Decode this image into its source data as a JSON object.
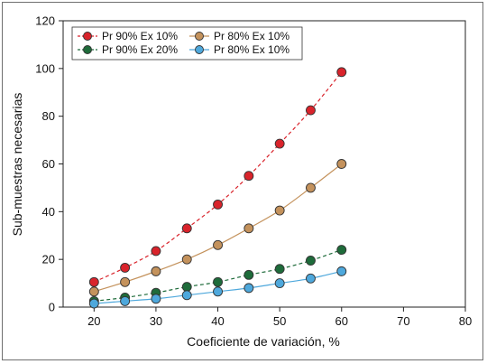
{
  "chart_data": {
    "type": "scatter",
    "title": "",
    "xlabel": "Coeficiente de variación, %",
    "ylabel": "Sub-muestras necesarias",
    "xlim": [
      15,
      80
    ],
    "ylim": [
      0,
      120
    ],
    "xticks": [
      "20",
      "30",
      "40",
      "50",
      "60",
      "70",
      "80"
    ],
    "yticks": [
      "0",
      "20",
      "40",
      "60",
      "80",
      "100",
      "120"
    ],
    "grid": false,
    "legend_position": "top-left",
    "x": [
      20,
      25,
      30,
      35,
      40,
      45,
      50,
      55,
      60
    ],
    "series": [
      {
        "name": "Pr 90% Ex 10%",
        "color": "#d9232b",
        "line": "dashed",
        "values": [
          10.5,
          16.5,
          23.5,
          33,
          43,
          55,
          68.5,
          82.5,
          98.5
        ]
      },
      {
        "name": "Pr 80% Ex 10%",
        "color": "#c4925c",
        "line": "solid",
        "values": [
          6.5,
          10.5,
          15,
          20,
          26,
          33,
          40.5,
          50,
          60
        ]
      },
      {
        "name": "Pr 90% Ex 20%",
        "color": "#1e6b3a",
        "line": "dashed",
        "values": [
          2.5,
          4,
          6,
          8.5,
          10.5,
          13.5,
          16,
          19.5,
          24
        ]
      },
      {
        "name": "Pr 80% Ex 10%",
        "color": "#4ea8dc",
        "line": "solid",
        "values": [
          1.5,
          2.5,
          3.5,
          5,
          6.5,
          8,
          10,
          12,
          15
        ]
      }
    ]
  }
}
